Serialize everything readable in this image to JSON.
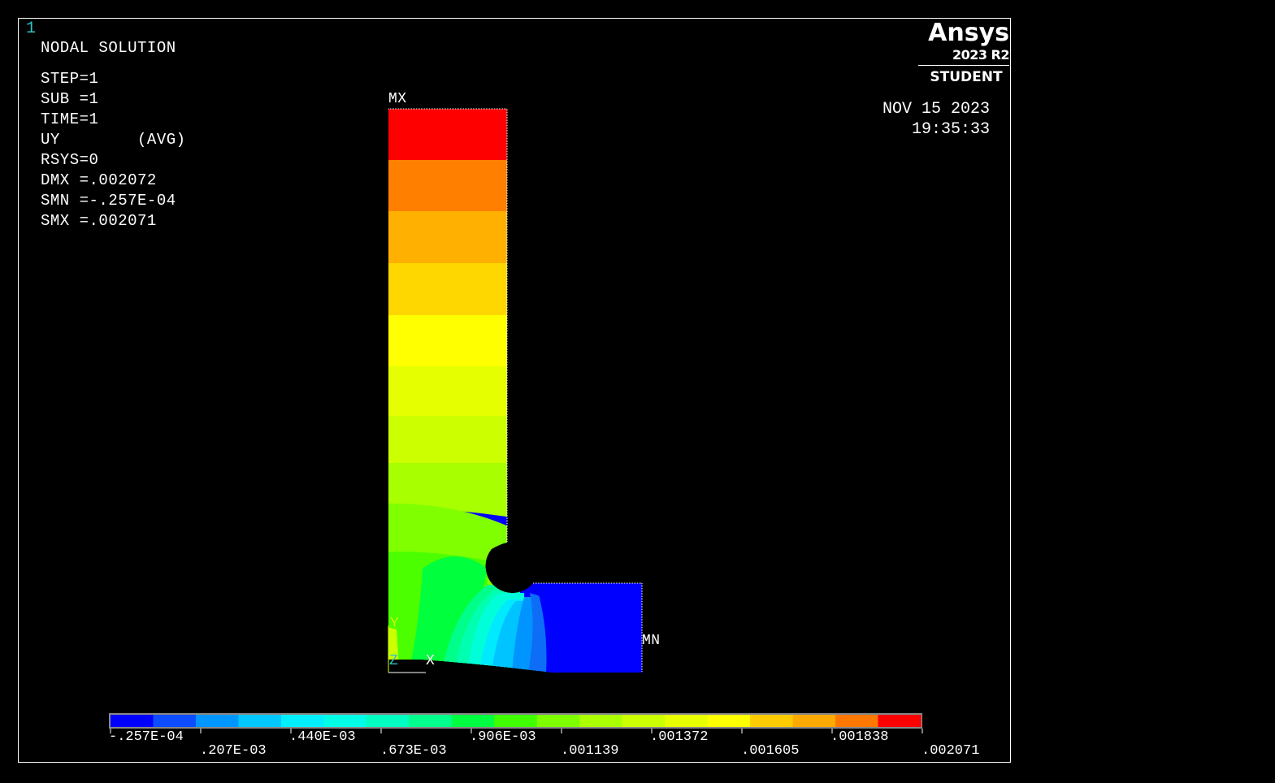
{
  "window": {
    "number": "1"
  },
  "legend_text": {
    "title": "NODAL SOLUTION",
    "lines": [
      "STEP=1",
      "SUB =1",
      "TIME=1",
      "UY        (AVG)",
      "RSYS=0",
      "DMX =.002072",
      "SMN =-.257E-04",
      "SMX =.002071"
    ]
  },
  "logo": {
    "name": "Ansys",
    "version": "2023 R2",
    "edition": "STUDENT"
  },
  "timestamp": {
    "date": "NOV 15 2023",
    "time": "19:35:33"
  },
  "markers": {
    "max_label": "MX",
    "min_label": "MN"
  },
  "axes": {
    "y": "Y",
    "z": "Z",
    "x": "X"
  },
  "contour_colors": [
    "#0000ff",
    "#0d6df7",
    "#0094ff",
    "#00c4ff",
    "#00eaff",
    "#00ffd9",
    "#00ffb0",
    "#00ff8a",
    "#00ff3c",
    "#4cff00",
    "#7fff00",
    "#a8ff00",
    "#ccff00",
    "#e6ff00",
    "#ffff00",
    "#ffd700",
    "#ffb000",
    "#ff8000",
    "#ff0000"
  ],
  "colorbar": {
    "colors": [
      "#0000ff",
      "#0d4cff",
      "#0096ff",
      "#00c8ff",
      "#00f0ff",
      "#00ffe6",
      "#00ffc0",
      "#00ff8c",
      "#00ff40",
      "#40ff00",
      "#7dff00",
      "#aaff00",
      "#ccff00",
      "#e8ff00",
      "#ffff00",
      "#ffcc00",
      "#ffaa00",
      "#ff7800",
      "#ff0000"
    ],
    "labels_top": [
      "-.257E-04",
      ".440E-03",
      ".906E-03",
      ".001372",
      ".001838"
    ],
    "labels_bottom": [
      ".207E-03",
      ".673E-03",
      ".001139",
      ".001605",
      ".002071"
    ]
  }
}
